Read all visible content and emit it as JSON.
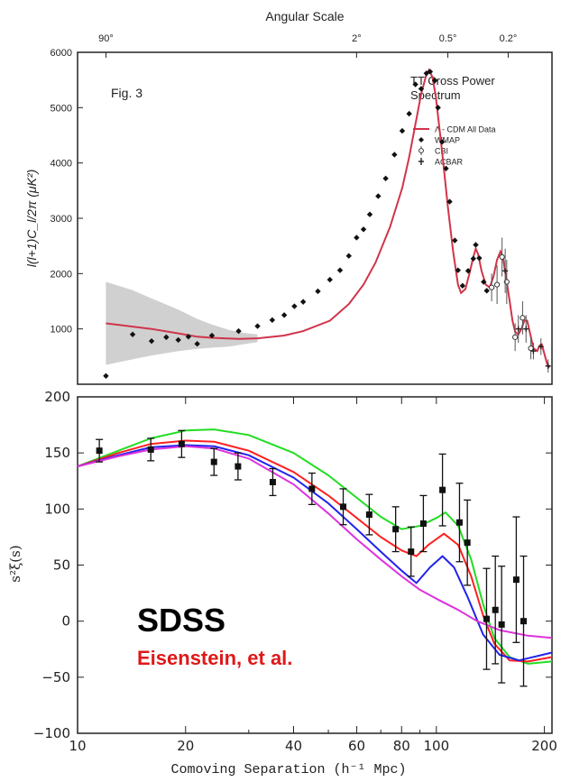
{
  "chart_data": [
    {
      "type": "scatter",
      "top_axis": {
        "label": "Angular Scale",
        "ticks": [
          {
            "l": 2,
            "label": "90°"
          },
          {
            "l": 90,
            "label": "2°"
          },
          {
            "l": 360,
            "label": "0.5°"
          },
          {
            "l": 900,
            "label": "0.2°"
          }
        ]
      },
      "figure_label": "Fig. 3",
      "title": "TT Cross Power\nSpectrum",
      "ylabel": "l(l+1)C_l/2π (μK²)",
      "ylim": [
        0,
        6000
      ],
      "yticks": [
        0,
        1000,
        2000,
        3000,
        4000,
        5000,
        6000
      ],
      "legend": [
        {
          "name": "Λ - CDM All Data",
          "marker": "line",
          "color": "#d0344a"
        },
        {
          "name": "WMAP",
          "marker": "dot"
        },
        {
          "name": "CBI",
          "marker": "cbi"
        },
        {
          "name": "ACBAR",
          "marker": "acbar"
        }
      ],
      "model_curve": [
        [
          2,
          1100
        ],
        [
          4,
          1000
        ],
        [
          6,
          920
        ],
        [
          8,
          860
        ],
        [
          10,
          840
        ],
        [
          15,
          820
        ],
        [
          20,
          830
        ],
        [
          30,
          880
        ],
        [
          40,
          960
        ],
        [
          60,
          1150
        ],
        [
          80,
          1450
        ],
        [
          100,
          1800
        ],
        [
          120,
          2200
        ],
        [
          150,
          2850
        ],
        [
          180,
          3550
        ],
        [
          200,
          4100
        ],
        [
          220,
          4700
        ],
        [
          240,
          5250
        ],
        [
          260,
          5600
        ],
        [
          270,
          5680
        ],
        [
          285,
          5550
        ],
        [
          300,
          5200
        ],
        [
          330,
          4200
        ],
        [
          360,
          3200
        ],
        [
          390,
          2400
        ],
        [
          420,
          1800
        ],
        [
          440,
          1650
        ],
        [
          470,
          1720
        ],
        [
          500,
          2000
        ],
        [
          530,
          2300
        ],
        [
          550,
          2450
        ],
        [
          570,
          2350
        ],
        [
          600,
          2050
        ],
        [
          640,
          1800
        ],
        [
          680,
          1750
        ],
        [
          720,
          1950
        ],
        [
          760,
          2250
        ],
        [
          800,
          2400
        ],
        [
          830,
          2300
        ],
        [
          870,
          1950
        ],
        [
          920,
          1500
        ],
        [
          960,
          1150
        ],
        [
          1000,
          950
        ],
        [
          1050,
          900
        ],
        [
          1100,
          1000
        ],
        [
          1150,
          1150
        ],
        [
          1200,
          1150
        ],
        [
          1260,
          900
        ],
        [
          1320,
          650
        ],
        [
          1400,
          600
        ],
        [
          1450,
          700
        ],
        [
          1500,
          720
        ],
        [
          1560,
          550
        ],
        [
          1620,
          380
        ],
        [
          1680,
          300
        ]
      ],
      "cosmic_variance_band": [
        [
          2,
          1850,
          350
        ],
        [
          3,
          1700,
          450
        ],
        [
          4,
          1550,
          520
        ],
        [
          6,
          1350,
          600
        ],
        [
          8,
          1180,
          640
        ],
        [
          10,
          1080,
          660
        ],
        [
          13,
          980,
          680
        ],
        [
          16,
          930,
          720
        ],
        [
          20,
          900,
          760
        ]
      ],
      "wmap_points": [
        [
          2,
          150
        ],
        [
          3,
          900
        ],
        [
          4,
          780
        ],
        [
          5,
          850
        ],
        [
          6,
          800
        ],
        [
          7,
          860
        ],
        [
          8,
          730
        ],
        [
          10,
          880
        ],
        [
          15,
          960
        ],
        [
          20,
          1050
        ],
        [
          25,
          1160
        ],
        [
          30,
          1250
        ],
        [
          35,
          1410
        ],
        [
          40,
          1490
        ],
        [
          50,
          1680
        ],
        [
          60,
          1890
        ],
        [
          70,
          2060
        ],
        [
          80,
          2320
        ],
        [
          90,
          2650
        ],
        [
          100,
          2800
        ],
        [
          110,
          3070
        ],
        [
          125,
          3400
        ],
        [
          140,
          3720
        ],
        [
          160,
          4150
        ],
        [
          180,
          4580
        ],
        [
          200,
          4890
        ],
        [
          220,
          5420
        ],
        [
          240,
          5340
        ],
        [
          260,
          5620
        ],
        [
          275,
          5650
        ],
        [
          295,
          5490
        ],
        [
          310,
          5000
        ],
        [
          330,
          4380
        ],
        [
          350,
          3900
        ],
        [
          370,
          3300
        ],
        [
          400,
          2600
        ],
        [
          420,
          2060
        ],
        [
          450,
          1780
        ],
        [
          490,
          2050
        ],
        [
          530,
          2270
        ],
        [
          550,
          2520
        ],
        [
          580,
          2280
        ],
        [
          620,
          1850
        ],
        [
          650,
          1690
        ]
      ],
      "cbi_points": [
        [
          700,
          1750,
          250
        ],
        [
          760,
          1800,
          350
        ],
        [
          820,
          2300,
          350
        ],
        [
          880,
          1850,
          400
        ],
        [
          1000,
          850,
          250
        ],
        [
          1120,
          1200,
          300
        ],
        [
          1270,
          650,
          200
        ]
      ],
      "acbar_points": [
        [
          860,
          2050,
          400
        ],
        [
          1050,
          1000,
          250
        ],
        [
          1180,
          1000,
          250
        ],
        [
          1320,
          600,
          150
        ],
        [
          1480,
          680,
          150
        ],
        [
          1650,
          330,
          120
        ]
      ]
    },
    {
      "type": "line",
      "title": "SDSS",
      "subtitle": "Eisenstein, et al.",
      "xlabel": "Comoving Separation (h⁻¹ Mpc)",
      "ylabel": "s²ξ(s)",
      "xscale": "log",
      "xlim": [
        10,
        210
      ],
      "ylim": [
        -100,
        200
      ],
      "xticks": [
        10,
        20,
        40,
        60,
        80,
        100,
        200
      ],
      "yticks": [
        -100,
        -50,
        0,
        50,
        100,
        150,
        200
      ],
      "series": [
        {
          "color": "#22dd22",
          "points": [
            [
              10,
              138
            ],
            [
              13,
              152
            ],
            [
              16,
              163
            ],
            [
              20,
              170
            ],
            [
              24,
              171
            ],
            [
              30,
              166
            ],
            [
              40,
              150
            ],
            [
              50,
              130
            ],
            [
              60,
              110
            ],
            [
              70,
              93
            ],
            [
              80,
              82
            ],
            [
              90,
              85
            ],
            [
              100,
              92
            ],
            [
              106,
              97
            ],
            [
              115,
              85
            ],
            [
              125,
              55
            ],
            [
              135,
              15
            ],
            [
              145,
              -15
            ],
            [
              160,
              -32
            ],
            [
              180,
              -38
            ],
            [
              210,
              -36
            ]
          ]
        },
        {
          "color": "#ff2020",
          "points": [
            [
              10,
              138
            ],
            [
              13,
              150
            ],
            [
              16,
              158
            ],
            [
              20,
              161
            ],
            [
              24,
              160
            ],
            [
              30,
              152
            ],
            [
              40,
              133
            ],
            [
              50,
              112
            ],
            [
              60,
              92
            ],
            [
              70,
              75
            ],
            [
              80,
              63
            ],
            [
              88,
              58
            ],
            [
              95,
              68
            ],
            [
              105,
              78
            ],
            [
              115,
              68
            ],
            [
              125,
              40
            ],
            [
              135,
              5
            ],
            [
              145,
              -20
            ],
            [
              160,
              -35
            ],
            [
              180,
              -36
            ],
            [
              210,
              -32
            ]
          ]
        },
        {
          "color": "#2222ee",
          "points": [
            [
              10,
              138
            ],
            [
              13,
              148
            ],
            [
              16,
              155
            ],
            [
              20,
              157
            ],
            [
              24,
              156
            ],
            [
              30,
              148
            ],
            [
              40,
              128
            ],
            [
              50,
              105
            ],
            [
              60,
              82
            ],
            [
              70,
              62
            ],
            [
              80,
              45
            ],
            [
              88,
              34
            ],
            [
              96,
              48
            ],
            [
              104,
              58
            ],
            [
              112,
              48
            ],
            [
              122,
              22
            ],
            [
              135,
              -12
            ],
            [
              150,
              -30
            ],
            [
              170,
              -35
            ],
            [
              210,
              -28
            ]
          ]
        },
        {
          "color": "#dd33dd",
          "points": [
            [
              10,
              138
            ],
            [
              13,
              147
            ],
            [
              16,
              153
            ],
            [
              20,
              156
            ],
            [
              24,
              154
            ],
            [
              30,
              145
            ],
            [
              40,
              122
            ],
            [
              50,
              96
            ],
            [
              60,
              73
            ],
            [
              70,
              55
            ],
            [
              80,
              40
            ],
            [
              90,
              28
            ],
            [
              100,
              20
            ],
            [
              115,
              10
            ],
            [
              130,
              0
            ],
            [
              150,
              -8
            ],
            [
              180,
              -13
            ],
            [
              210,
              -15
            ]
          ]
        }
      ],
      "points": [
        [
          11.5,
          152,
          10
        ],
        [
          16,
          153,
          10
        ],
        [
          19.5,
          158,
          12
        ],
        [
          24,
          142,
          12
        ],
        [
          28,
          138,
          12
        ],
        [
          35,
          124,
          12
        ],
        [
          45,
          118,
          14
        ],
        [
          55,
          102,
          16
        ],
        [
          65,
          95,
          18
        ],
        [
          77,
          82,
          20
        ],
        [
          85,
          62,
          22
        ],
        [
          92,
          87,
          25
        ],
        [
          104,
          117,
          32
        ],
        [
          116,
          88,
          35
        ],
        [
          122,
          70,
          38
        ],
        [
          138,
          2,
          45
        ],
        [
          146,
          10,
          48
        ],
        [
          152,
          -3,
          52
        ],
        [
          167,
          37,
          56
        ],
        [
          175,
          0,
          58
        ]
      ]
    }
  ]
}
